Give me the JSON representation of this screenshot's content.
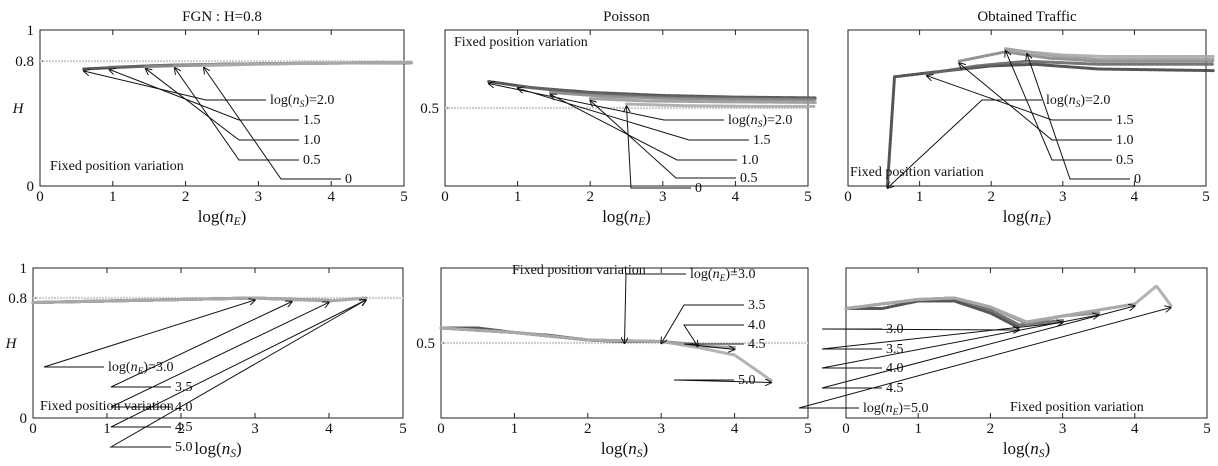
{
  "chart_data": [
    {
      "type": "line",
      "title": "FGN : H=0.8",
      "xlabel": "log(nE)",
      "ylabel": "H",
      "xlim": [
        0,
        5
      ],
      "ylim": [
        0,
        1
      ],
      "xticks": [
        "0",
        "1",
        "2",
        "3",
        "4",
        "5"
      ],
      "yticks": [
        {
          "value": 0,
          "label": "0"
        },
        {
          "value": 0.8,
          "label": "0.8"
        },
        {
          "value": 1,
          "label": "1"
        }
      ],
      "reference_line": 0.8,
      "annotation": "Fixed position variation",
      "series": [
        {
          "name": "0",
          "color": "#444444",
          "x": [
            0.6,
            1.5,
            2.5,
            3.5,
            4.5,
            5.1
          ],
          "y": [
            0.75,
            0.77,
            0.78,
            0.785,
            0.79,
            0.79
          ]
        },
        {
          "name": "0.5",
          "color": "#666666",
          "x": [
            0.95,
            1.8,
            2.8,
            3.8,
            5.1
          ],
          "y": [
            0.76,
            0.775,
            0.782,
            0.788,
            0.79
          ]
        },
        {
          "name": "1.0",
          "color": "#888888",
          "x": [
            1.45,
            2.3,
            3.3,
            4.3,
            5.1
          ],
          "y": [
            0.765,
            0.778,
            0.785,
            0.79,
            0.792
          ]
        },
        {
          "name": "1.5",
          "color": "#999999",
          "x": [
            1.85,
            2.7,
            3.7,
            5.1
          ],
          "y": [
            0.77,
            0.78,
            0.787,
            0.792
          ]
        },
        {
          "name": "log(nS)=2.0",
          "color": "#aaaaaa",
          "x": [
            2.25,
            3.1,
            4.1,
            5.1
          ],
          "y": [
            0.772,
            0.782,
            0.788,
            0.793
          ]
        }
      ],
      "labels": [
        "log(nS)=2.0",
        "1.5",
        "1.0",
        "0.5",
        "0"
      ]
    },
    {
      "type": "line",
      "title": "Poisson",
      "xlabel": "log(nE)",
      "ylabel": "",
      "xlim": [
        0,
        5
      ],
      "ylim": [
        0,
        1
      ],
      "xticks": [
        "0",
        "1",
        "2",
        "3",
        "4",
        "5"
      ],
      "yticks": [
        {
          "value": 0.5,
          "label": "0.5"
        }
      ],
      "reference_line": 0.5,
      "annotation": "Fixed position variation",
      "series": [
        {
          "name": "0",
          "color": "#444444",
          "x": [
            0.6,
            1.2,
            2.0,
            3.0,
            4.0,
            5.1
          ],
          "y": [
            0.67,
            0.63,
            0.6,
            0.58,
            0.57,
            0.565
          ]
        },
        {
          "name": "0.5",
          "color": "#666666",
          "x": [
            1.0,
            1.8,
            2.8,
            3.8,
            5.1
          ],
          "y": [
            0.64,
            0.6,
            0.575,
            0.565,
            0.56
          ]
        },
        {
          "name": "1.0",
          "color": "#888888",
          "x": [
            1.45,
            2.2,
            3.2,
            4.2,
            5.1
          ],
          "y": [
            0.6,
            0.575,
            0.56,
            0.555,
            0.55
          ]
        },
        {
          "name": "1.5",
          "color": "#999999",
          "x": [
            2.0,
            2.8,
            3.8,
            5.1
          ],
          "y": [
            0.56,
            0.545,
            0.54,
            0.535
          ]
        },
        {
          "name": "log(nS)=2.0",
          "color": "#aaaaaa",
          "x": [
            2.5,
            3.3,
            4.3,
            5.1
          ],
          "y": [
            0.525,
            0.515,
            0.51,
            0.51
          ]
        }
      ],
      "labels": [
        "log(nS)=2.0",
        "1.5",
        "1.0",
        "0.5",
        "0"
      ]
    },
    {
      "type": "line",
      "title": "Obtained Traffic",
      "xlabel": "log(nE)",
      "ylabel": "",
      "xlim": [
        0,
        5
      ],
      "ylim": [
        0,
        1
      ],
      "xticks": [
        "0",
        "1",
        "2",
        "3",
        "4",
        "5"
      ],
      "yticks": [],
      "annotation": "Fixed position variation",
      "series": [
        {
          "name": "0",
          "color": "#444444",
          "x": [
            0.55,
            0.65,
            1.2,
            2.0,
            2.6,
            3.5,
            5.1
          ],
          "y": [
            0.0,
            0.7,
            0.73,
            0.77,
            0.78,
            0.75,
            0.74
          ]
        },
        {
          "name": "0.5",
          "color": "#666666",
          "x": [
            1.1,
            1.8,
            2.5,
            3.5,
            5.1
          ],
          "y": [
            0.72,
            0.77,
            0.8,
            0.78,
            0.78
          ]
        },
        {
          "name": "1.0",
          "color": "#888888",
          "x": [
            1.55,
            2.2,
            2.8,
            3.5,
            5.1
          ],
          "y": [
            0.8,
            0.86,
            0.82,
            0.8,
            0.8
          ]
        },
        {
          "name": "1.5",
          "color": "#999999",
          "x": [
            2.2,
            2.8,
            3.5,
            5.1
          ],
          "y": [
            0.88,
            0.84,
            0.81,
            0.81
          ]
        },
        {
          "name": "log(nS)=2.0",
          "color": "#aaaaaa",
          "x": [
            2.5,
            3.0,
            3.6,
            5.1
          ],
          "y": [
            0.86,
            0.84,
            0.83,
            0.83
          ]
        }
      ],
      "labels": [
        "log(nS)=2.0",
        "1.5",
        "1.0",
        "0.5",
        "0"
      ]
    },
    {
      "type": "line",
      "title": "",
      "xlabel": "log(nS)",
      "ylabel": "H",
      "xlim": [
        0,
        5
      ],
      "ylim": [
        0,
        1
      ],
      "xticks": [
        "0",
        "1",
        "2",
        "3",
        "4",
        "5"
      ],
      "yticks": [
        {
          "value": 0,
          "label": "0"
        },
        {
          "value": 0.8,
          "label": "0.8"
        },
        {
          "value": 1,
          "label": "1"
        }
      ],
      "reference_line": 0.8,
      "annotation": "Fixed position variation",
      "series": [
        {
          "name": "log(nE)=3.0",
          "color": "#444444",
          "x": [
            0,
            1,
            2,
            3.0
          ],
          "y": [
            0.77,
            0.78,
            0.79,
            0.8
          ]
        },
        {
          "name": "3.5",
          "color": "#666666",
          "x": [
            0,
            1,
            2,
            3,
            3.5
          ],
          "y": [
            0.77,
            0.78,
            0.79,
            0.8,
            0.79
          ]
        },
        {
          "name": "4.0",
          "color": "#888888",
          "x": [
            0,
            1,
            2,
            3,
            4.0
          ],
          "y": [
            0.77,
            0.78,
            0.79,
            0.8,
            0.785
          ]
        },
        {
          "name": "4.5",
          "color": "#999999",
          "x": [
            0,
            1,
            2,
            3,
            4,
            4.5
          ],
          "y": [
            0.77,
            0.78,
            0.79,
            0.8,
            0.78,
            0.8
          ]
        },
        {
          "name": "5.0",
          "color": "#aaaaaa",
          "x": [
            0,
            1,
            2,
            3,
            4,
            4.5
          ],
          "y": [
            0.77,
            0.78,
            0.79,
            0.8,
            0.78,
            0.8
          ]
        }
      ],
      "labels": [
        "log(nE)=3.0",
        "3.5",
        "4.0",
        "4.5",
        "5.0"
      ]
    },
    {
      "type": "line",
      "title": "",
      "xlabel": "log(nS)",
      "ylabel": "",
      "xlim": [
        0,
        5
      ],
      "ylim": [
        0,
        1
      ],
      "xticks": [
        "0",
        "1",
        "2",
        "3",
        "4",
        "5"
      ],
      "yticks": [
        {
          "value": 0.5,
          "label": "0.5"
        }
      ],
      "reference_line": 0.5,
      "annotation": "Fixed position variation",
      "series": [
        {
          "name": "log(nE)=3.0",
          "color": "#444444",
          "x": [
            0,
            0.5,
            1,
            1.5,
            2,
            2.5
          ],
          "y": [
            0.6,
            0.6,
            0.57,
            0.55,
            0.52,
            0.51
          ]
        },
        {
          "name": "3.5",
          "color": "#666666",
          "x": [
            0,
            1,
            2,
            2.5,
            3.0
          ],
          "y": [
            0.6,
            0.57,
            0.52,
            0.51,
            0.51
          ]
        },
        {
          "name": "4.0",
          "color": "#888888",
          "x": [
            0,
            1,
            2,
            3,
            3.5
          ],
          "y": [
            0.6,
            0.57,
            0.52,
            0.51,
            0.49
          ]
        },
        {
          "name": "4.5",
          "color": "#999999",
          "x": [
            0,
            1,
            2,
            3,
            3.5,
            4.0
          ],
          "y": [
            0.6,
            0.57,
            0.52,
            0.51,
            0.48,
            0.47
          ]
        },
        {
          "name": "5.0",
          "color": "#aaaaaa",
          "x": [
            0,
            1,
            2,
            3,
            3.5,
            4.0,
            4.5
          ],
          "y": [
            0.6,
            0.57,
            0.52,
            0.51,
            0.47,
            0.42,
            0.25
          ]
        }
      ],
      "labels": [
        "log(nE)=3.0",
        "3.5",
        "4.0",
        "4.5",
        "5.0"
      ]
    },
    {
      "type": "line",
      "title": "",
      "xlabel": "log(nS)",
      "ylabel": "",
      "xlim": [
        0,
        5
      ],
      "ylim": [
        0,
        1
      ],
      "xticks": [
        "0",
        "1",
        "2",
        "3",
        "4",
        "5"
      ],
      "yticks": [],
      "annotation": "Fixed position variation",
      "series": [
        {
          "name": "3.0",
          "color": "#444444",
          "x": [
            0,
            0.5,
            1,
            1.5,
            2,
            2.4
          ],
          "y": [
            0.73,
            0.73,
            0.78,
            0.78,
            0.7,
            0.6
          ]
        },
        {
          "name": "3.5",
          "color": "#666666",
          "x": [
            0,
            1,
            1.5,
            2,
            2.4,
            3.0
          ],
          "y": [
            0.73,
            0.79,
            0.8,
            0.72,
            0.62,
            0.65
          ]
        },
        {
          "name": "4.0",
          "color": "#888888",
          "x": [
            0,
            1,
            1.5,
            2,
            2.5,
            3.0,
            3.5
          ],
          "y": [
            0.73,
            0.79,
            0.8,
            0.74,
            0.63,
            0.68,
            0.7
          ]
        },
        {
          "name": "4.5",
          "color": "#999999",
          "x": [
            0,
            1,
            1.5,
            2,
            2.5,
            3.0,
            3.5,
            4.0
          ],
          "y": [
            0.73,
            0.79,
            0.8,
            0.74,
            0.64,
            0.68,
            0.72,
            0.76
          ]
        },
        {
          "name": "log(nE)=5.0",
          "color": "#aaaaaa",
          "x": [
            0,
            1,
            1.5,
            2,
            2.5,
            3.0,
            3.5,
            4.0,
            4.3,
            4.5
          ],
          "y": [
            0.73,
            0.79,
            0.8,
            0.74,
            0.64,
            0.68,
            0.72,
            0.76,
            0.88,
            0.75
          ]
        }
      ],
      "labels": [
        "3.0",
        "3.5",
        "4.0",
        "4.5",
        "log(nE)=5.0"
      ]
    }
  ]
}
